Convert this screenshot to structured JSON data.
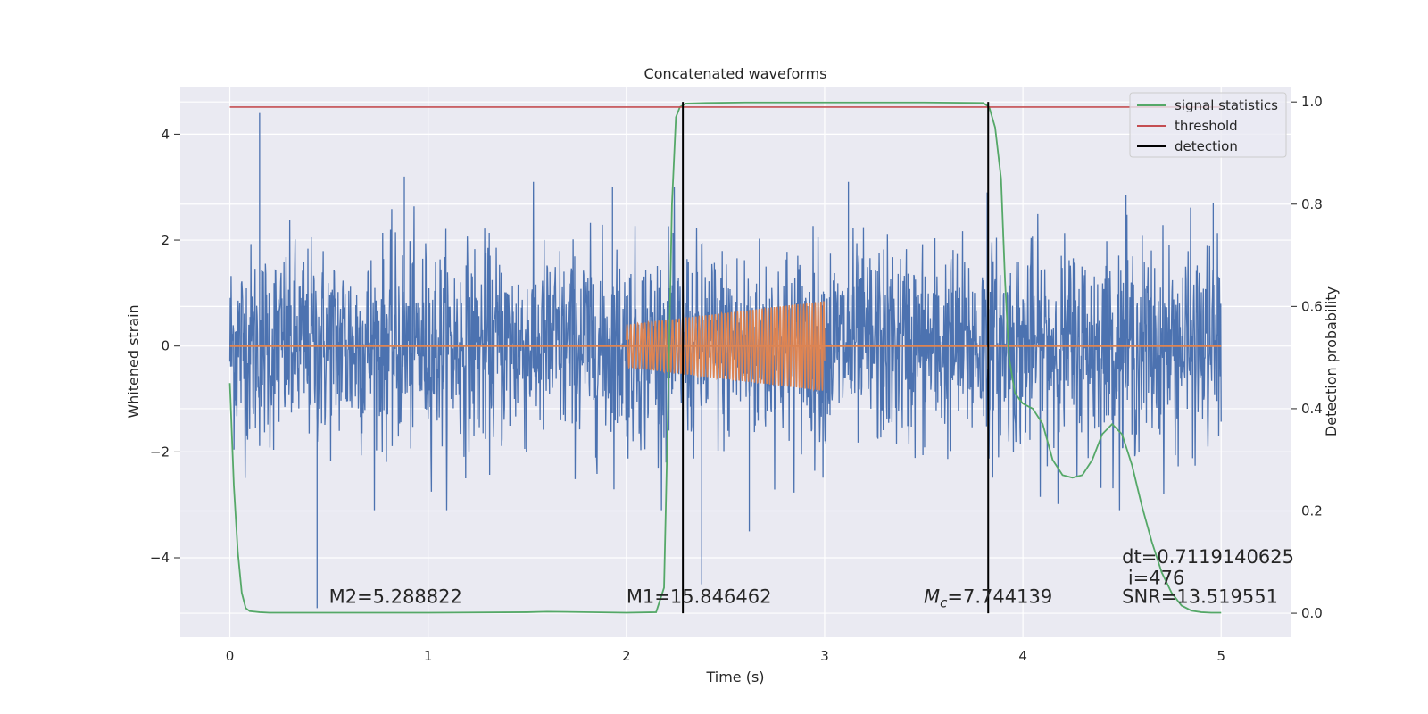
{
  "chart_data": {
    "type": "line",
    "title": "Concatenated waveforms",
    "xlabel": "Time (s)",
    "ylabel_left": "Whitened strain",
    "ylabel_right": "Detection probability",
    "xlim": [
      -0.25,
      5.35
    ],
    "ylim_left": [
      -5.5,
      4.9
    ],
    "ylim_right": [
      -0.047,
      1.03
    ],
    "x_ticks": [
      0,
      1,
      2,
      3,
      4,
      5
    ],
    "x_tick_labels": [
      "0",
      "1",
      "2",
      "3",
      "4",
      "5"
    ],
    "y_left_ticks": [
      -4,
      -2,
      0,
      2,
      4
    ],
    "y_left_tick_labels": [
      "−4",
      "−2",
      "0",
      "2",
      "4"
    ],
    "y_right_ticks": [
      0.0,
      0.2,
      0.4,
      0.6,
      0.8,
      1.0
    ],
    "y_right_tick_labels": [
      "0.0",
      "0.2",
      "0.4",
      "0.6",
      "0.8",
      "1.0"
    ],
    "grid": true,
    "legend_position": "top-right",
    "series": [
      {
        "name": "",
        "axis": "left",
        "kind": "noise",
        "color": "#4c72b0",
        "x_range": [
          0,
          5
        ],
        "amplitude_std": 0.95,
        "spikes": [
          [
            0.15,
            4.4
          ],
          [
            0.44,
            -4.95
          ],
          [
            0.88,
            3.2
          ],
          [
            1.93,
            3.0
          ],
          [
            2.38,
            -4.5
          ],
          [
            2.62,
            -3.5
          ],
          [
            3.12,
            3.1
          ],
          [
            3.82,
            2.9
          ],
          [
            4.52,
            2.85
          ],
          [
            4.96,
            2.7
          ]
        ]
      },
      {
        "name": "",
        "axis": "left",
        "kind": "chirp",
        "color": "#dd8452",
        "x_range": [
          2.0,
          3.0
        ],
        "amplitude_start": 0.4,
        "amplitude_end": 0.85,
        "baseline": 0.0
      },
      {
        "name": "signal statistics",
        "axis": "right",
        "color": "#55a868",
        "x": [
          0,
          0.02,
          0.04,
          0.06,
          0.08,
          0.1,
          0.15,
          0.2,
          0.5,
          1.0,
          1.5,
          1.6,
          2.0,
          2.15,
          2.19,
          2.21,
          2.23,
          2.25,
          2.27,
          2.3,
          2.4,
          2.6,
          3.0,
          3.5,
          3.8,
          3.83,
          3.86,
          3.89,
          3.91,
          3.93,
          3.96,
          4.0,
          4.05,
          4.1,
          4.15,
          4.2,
          4.25,
          4.3,
          4.35,
          4.4,
          4.45,
          4.5,
          4.55,
          4.6,
          4.65,
          4.7,
          4.75,
          4.8,
          4.85,
          4.9,
          4.95,
          5.0
        ],
        "y": [
          0.45,
          0.25,
          0.12,
          0.04,
          0.01,
          0.004,
          0.002,
          0.001,
          0.001,
          0.001,
          0.002,
          0.003,
          0.001,
          0.002,
          0.05,
          0.4,
          0.8,
          0.97,
          0.99,
          0.997,
          0.998,
          0.999,
          0.999,
          0.999,
          0.998,
          0.99,
          0.95,
          0.85,
          0.65,
          0.5,
          0.43,
          0.41,
          0.4,
          0.37,
          0.3,
          0.27,
          0.265,
          0.27,
          0.3,
          0.35,
          0.37,
          0.35,
          0.29,
          0.21,
          0.14,
          0.08,
          0.04,
          0.015,
          0.005,
          0.002,
          0.001,
          0.001
        ]
      },
      {
        "name": "threshold",
        "axis": "right",
        "color": "#c44e52",
        "x": [
          0,
          5
        ],
        "y": [
          0.99,
          0.99
        ]
      },
      {
        "name": "detection",
        "axis": "right",
        "color": "#000000",
        "kind": "vlines",
        "x": [
          2.285,
          3.825
        ],
        "y": [
          0.0,
          1.0
        ]
      }
    ],
    "annotations": [
      {
        "id": "m2",
        "prefix": "",
        "text": "M2=5.288822",
        "x": 0.5,
        "y": -4.85
      },
      {
        "id": "m1",
        "prefix": "",
        "text": "M1=15.846462",
        "x": 2.0,
        "y": -4.85
      },
      {
        "id": "mc",
        "prefix": "M",
        "sub": "c",
        "text": "=7.744139",
        "x": 3.5,
        "y": -4.85
      },
      {
        "id": "snr",
        "prefix": "",
        "text": "SNR=13.519551",
        "x": 4.5,
        "y": -4.85
      },
      {
        "id": "i",
        "prefix": "",
        "text": " i=476",
        "x": 4.5,
        "y": -4.5
      },
      {
        "id": "dt",
        "prefix": "",
        "text": "dt=0.7119140625",
        "x": 4.5,
        "y": -4.1
      }
    ]
  },
  "colors": {
    "axes_bg": "#eaeaf2",
    "grid": "#ffffff",
    "text": "#262626"
  }
}
